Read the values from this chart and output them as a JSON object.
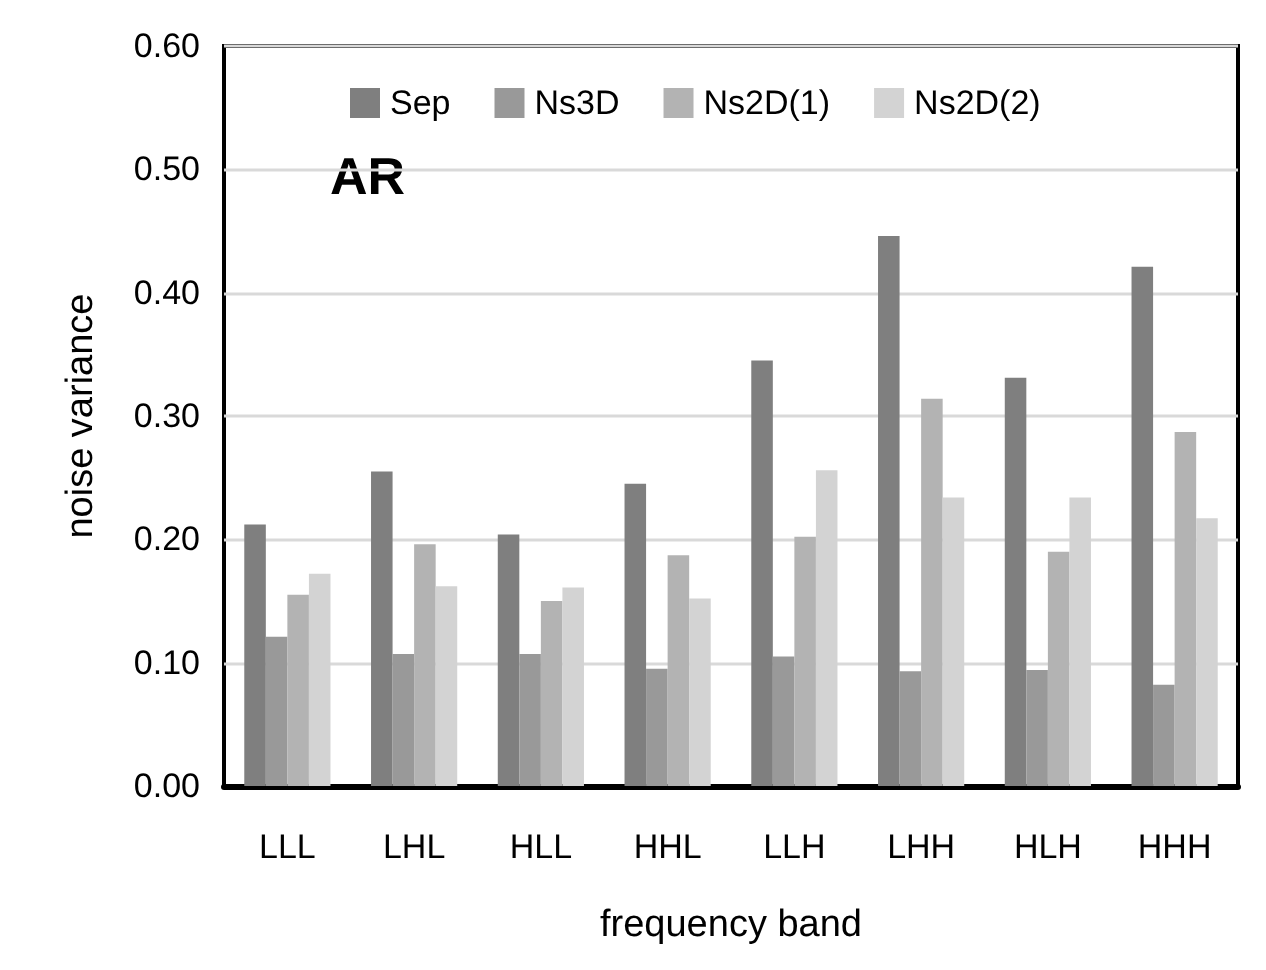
{
  "chart_data": {
    "type": "bar",
    "xlabel": "frequency band",
    "ylabel": "noise variance",
    "annotations": [
      "AR"
    ],
    "categories": [
      "LLL",
      "LHL",
      "HLL",
      "HHL",
      "LLH",
      "LHH",
      "HLH",
      "HHH"
    ],
    "series": [
      {
        "name": "Sep",
        "color": "#7f7f7f",
        "values": [
          0.212,
          0.255,
          0.204,
          0.245,
          0.345,
          0.446,
          0.331,
          0.421
        ]
      },
      {
        "name": "Ns3D",
        "color": "#999999",
        "values": [
          0.121,
          0.107,
          0.107,
          0.095,
          0.105,
          0.093,
          0.094,
          0.082
        ]
      },
      {
        "name": "Ns2D(1)",
        "color": "#b3b3b3",
        "values": [
          0.155,
          0.196,
          0.15,
          0.187,
          0.202,
          0.314,
          0.19,
          0.287
        ]
      },
      {
        "name": "Ns2D(2)",
        "color": "#d3d3d3",
        "values": [
          0.172,
          0.162,
          0.161,
          0.152,
          0.256,
          0.234,
          0.234,
          0.217
        ]
      }
    ],
    "ylim": [
      0,
      0.6
    ],
    "yticks": [
      {
        "value": 0,
        "label": "0.00"
      },
      {
        "value": 0.1,
        "label": "0.10"
      },
      {
        "value": 0.2,
        "label": "0.20"
      },
      {
        "value": 0.3,
        "label": "0.30"
      },
      {
        "value": 0.4,
        "label": "0.40"
      },
      {
        "value": 0.5,
        "label": "0.50"
      },
      {
        "value": 0.6,
        "label": "0.60"
      }
    ],
    "grid": "y",
    "legend": "top"
  }
}
